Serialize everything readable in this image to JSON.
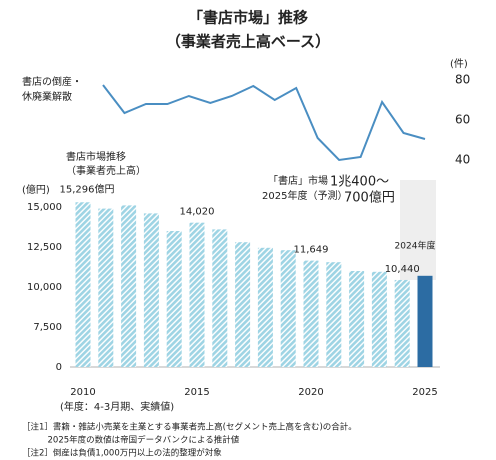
{
  "chart_data": [
    {
      "type": "bar",
      "title": "「書店市場」推移",
      "subtitle": "（事業者売上高ベース）",
      "label": [
        "書店市場推移",
        "（事業者売上高）"
      ],
      "unit": "(億円)",
      "x": [
        2010,
        2011,
        2012,
        2013,
        2014,
        2015,
        2016,
        2017,
        2018,
        2019,
        2020,
        2021,
        2022,
        2023,
        2024,
        2025
      ],
      "values": [
        15296,
        14900,
        15100,
        14600,
        13500,
        14020,
        13600,
        12800,
        12450,
        12300,
        11649,
        11550,
        11000,
        10950,
        10440,
        10700
      ],
      "value_labels": [
        "15,296億円",
        null,
        null,
        null,
        null,
        "14,020",
        null,
        null,
        null,
        null,
        "11,649",
        null,
        null,
        null,
        "10,440",
        null
      ],
      "colors": [
        "#9ed4e4",
        "#9ed4e4",
        "#9ed4e4",
        "#9ed4e4",
        "#9ed4e4",
        "#9ed4e4",
        "#9ed4e4",
        "#9ed4e4",
        "#9ed4e4",
        "#9ed4e4",
        "#9ed4e4",
        "#9ed4e4",
        "#9ed4e4",
        "#9ed4e4",
        "#9ed4e4",
        "#2c6ca3"
      ],
      "hatched": true,
      "xlim": [
        2010,
        2025
      ],
      "xticks": [
        2010,
        2015,
        2020,
        2025
      ],
      "x_note": "(年度：4-3月期、実績値)",
      "ylim": [
        0,
        15000
      ],
      "yticks": [
        0,
        {
          "value": 7500,
          "label": "7,500"
        },
        {
          "value": 10000,
          "label": "10,000"
        },
        {
          "value": 12500,
          "label": "12,500"
        },
        {
          "value": 15000,
          "label": "15,000"
        }
      ],
      "annotations": {
        "year_2024": "2024年度",
        "forecast": [
          "「書店」市場",
          "2025年度（予測）"
        ],
        "forecast_range": [
          "1兆400～",
          "700億円"
        ]
      }
    },
    {
      "type": "line",
      "label": [
        "書店の倒産・",
        "休廃業解散"
      ],
      "unit": "(件)",
      "x": [
        2010,
        2011,
        2012,
        2013,
        2014,
        2015,
        2016,
        2017,
        2018,
        2019,
        2020,
        2021,
        2022,
        2023,
        2024,
        2025
      ],
      "values": [
        77.5,
        63.5,
        68,
        68,
        72,
        68.5,
        72,
        77,
        70,
        76,
        51,
        40,
        41.5,
        69,
        53.5,
        50.5
      ],
      "color": "#4a8ec2",
      "xlim": [
        2010,
        2025
      ],
      "ylim": [
        40,
        80
      ],
      "yticks": [
        40,
        60,
        80
      ]
    }
  ],
  "notes": [
    "［注1］書籍・雑誌小売業を主業とする事業者売上高(セグメント売上高を含む)の合計。",
    "　　　2025年度の数値は帝国データバンクによる推計値",
    "［注2］倒産は負債1,000万円以上の法的整理が対象"
  ]
}
